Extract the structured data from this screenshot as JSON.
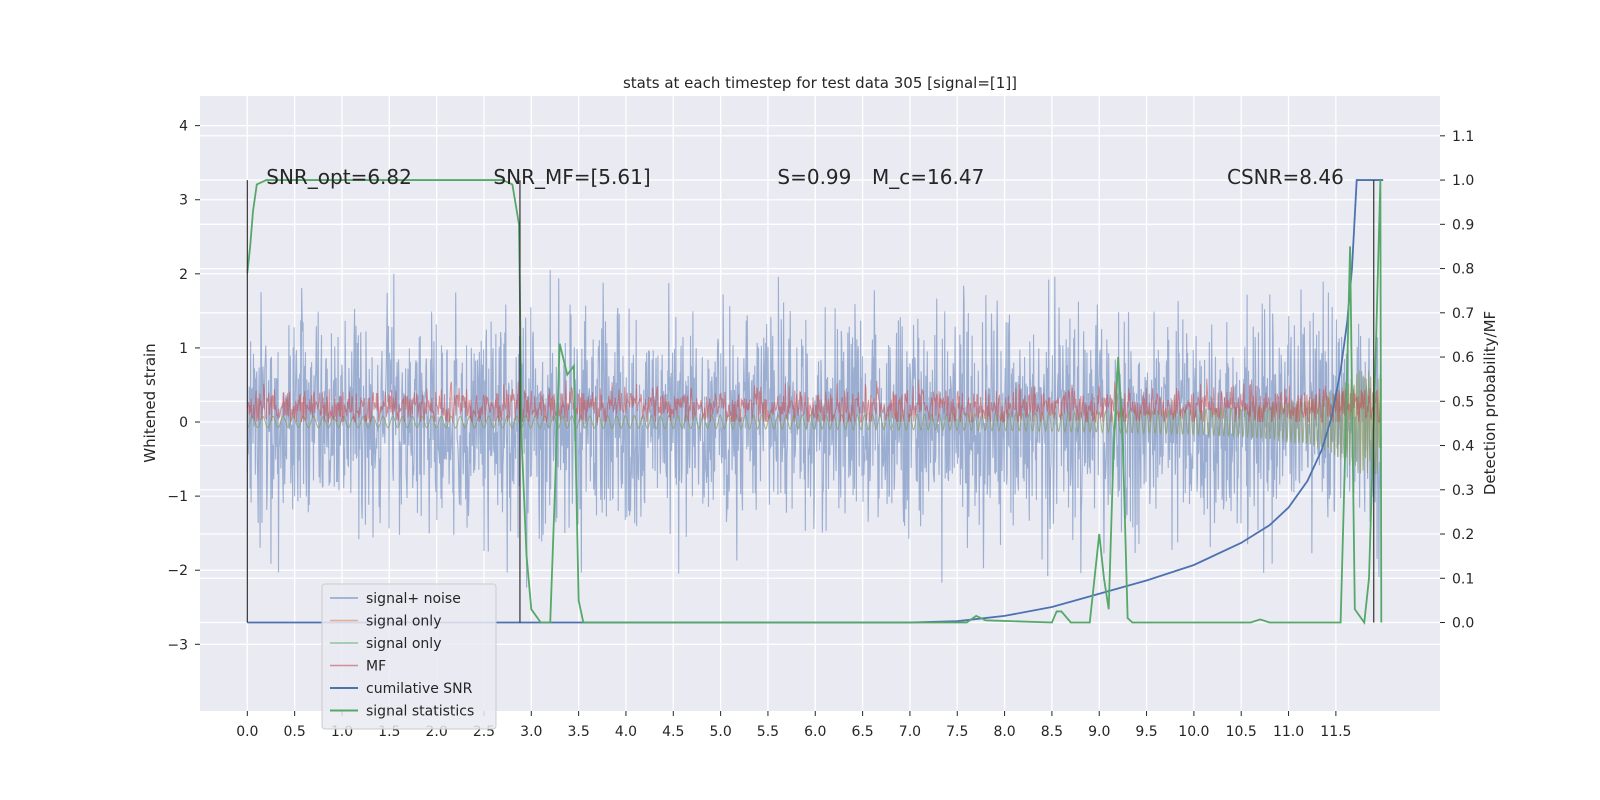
{
  "chart_data": {
    "type": "line",
    "title": "stats at each timestep for test data 305 [signal=[1]]",
    "xlabel": "",
    "ylabel": "Whitened strain",
    "ylabel_right": "Detection probability/MF",
    "xlim": [
      -0.5,
      12.6
    ],
    "ylim": [
      -3.9,
      4.4
    ],
    "ylim_right": [
      -0.2,
      1.19
    ],
    "x_ticks": [
      "0.0",
      "0.5",
      "1.0",
      "1.5",
      "2.0",
      "2.5",
      "3.0",
      "3.5",
      "4.0",
      "4.5",
      "5.0",
      "5.5",
      "6.0",
      "6.5",
      "7.0",
      "7.5",
      "8.0",
      "8.5",
      "9.0",
      "9.5",
      "10.0",
      "10.5",
      "11.0",
      "11.5"
    ],
    "y_ticks": [
      "−3",
      "−2",
      "−1",
      "0",
      "1",
      "2",
      "3",
      "4"
    ],
    "y_ticks_right": [
      "0.0",
      "0.1",
      "0.2",
      "0.3",
      "0.4",
      "0.5",
      "0.6",
      "0.7",
      "0.8",
      "0.9",
      "1.0",
      "1.1"
    ],
    "grid": true,
    "legend_position": "lower-left",
    "annotations": [
      {
        "text": "SNR_opt=6.82",
        "x": 0.2
      },
      {
        "text": "SNR_MF=[5.61]",
        "x": 2.6
      },
      {
        "text": "S=0.99",
        "x": 5.6
      },
      {
        "text": "M_c=16.47",
        "x": 6.6
      },
      {
        "text": "CSNR=8.46",
        "x": 10.35
      }
    ],
    "series": [
      {
        "name": "signal+ noise",
        "color": "#4c72b0",
        "axis": "left",
        "kind": "noise",
        "x_range": [
          0.0,
          11.98
        ],
        "amplitude": 1.2
      },
      {
        "name": "signal only",
        "color": "#dd8452",
        "axis": "left",
        "kind": "chirp",
        "x_range": [
          0.0,
          11.98
        ]
      },
      {
        "name": "signal only",
        "color": "#55a868",
        "axis": "left",
        "kind": "chirp",
        "x_range": [
          0.0,
          11.98
        ]
      },
      {
        "name": "MF",
        "color": "#c44e52",
        "axis": "left",
        "kind": "band",
        "x_range": [
          0.0,
          11.98
        ],
        "baseline": 0.2
      },
      {
        "name": "cumilative SNR",
        "color": "#4c72b0",
        "axis": "right",
        "points": [
          [
            0.0,
            0.0
          ],
          [
            7.0,
            0.0
          ],
          [
            7.5,
            0.003
          ],
          [
            8.0,
            0.015
          ],
          [
            8.5,
            0.035
          ],
          [
            9.0,
            0.065
          ],
          [
            9.5,
            0.095
          ],
          [
            10.0,
            0.13
          ],
          [
            10.5,
            0.18
          ],
          [
            10.8,
            0.22
          ],
          [
            11.0,
            0.26
          ],
          [
            11.2,
            0.32
          ],
          [
            11.35,
            0.39
          ],
          [
            11.45,
            0.46
          ],
          [
            11.55,
            0.57
          ],
          [
            11.62,
            0.68
          ],
          [
            11.67,
            0.8
          ],
          [
            11.7,
            0.92
          ],
          [
            11.72,
            1.0
          ],
          [
            12.0,
            1.0
          ]
        ]
      },
      {
        "name": "signal statistics",
        "color": "#55a868",
        "axis": "right",
        "points": [
          [
            0.0,
            0.79
          ],
          [
            0.03,
            0.85
          ],
          [
            0.06,
            0.93
          ],
          [
            0.1,
            0.99
          ],
          [
            0.2,
            1.0
          ],
          [
            2.7,
            1.0
          ],
          [
            2.8,
            0.99
          ],
          [
            2.87,
            0.9
          ],
          [
            2.9,
            0.4
          ],
          [
            2.95,
            0.15
          ],
          [
            3.0,
            0.03
          ],
          [
            3.1,
            0.0
          ],
          [
            3.2,
            0.0
          ],
          [
            3.25,
            0.3
          ],
          [
            3.3,
            0.63
          ],
          [
            3.38,
            0.56
          ],
          [
            3.45,
            0.58
          ],
          [
            3.5,
            0.05
          ],
          [
            3.55,
            0.0
          ],
          [
            7.6,
            0.0
          ],
          [
            7.7,
            0.015
          ],
          [
            7.8,
            0.005
          ],
          [
            8.5,
            0.0
          ],
          [
            8.55,
            0.025
          ],
          [
            8.6,
            0.025
          ],
          [
            8.7,
            0.0
          ],
          [
            8.9,
            0.0
          ],
          [
            9.0,
            0.2
          ],
          [
            9.05,
            0.1
          ],
          [
            9.1,
            0.03
          ],
          [
            9.15,
            0.38
          ],
          [
            9.2,
            0.6
          ],
          [
            9.25,
            0.4
          ],
          [
            9.3,
            0.01
          ],
          [
            9.35,
            0.0
          ],
          [
            10.6,
            0.0
          ],
          [
            10.7,
            0.007
          ],
          [
            10.8,
            0.0
          ],
          [
            11.55,
            0.0
          ],
          [
            11.6,
            0.4
          ],
          [
            11.65,
            0.85
          ],
          [
            11.7,
            0.03
          ],
          [
            11.8,
            0.0
          ],
          [
            11.85,
            0.1
          ],
          [
            11.92,
            0.6
          ],
          [
            11.97,
            1.0
          ],
          [
            11.98,
            0.0
          ]
        ]
      }
    ],
    "vertical_markers_x": [
      0.0,
      2.88,
      11.9
    ]
  }
}
